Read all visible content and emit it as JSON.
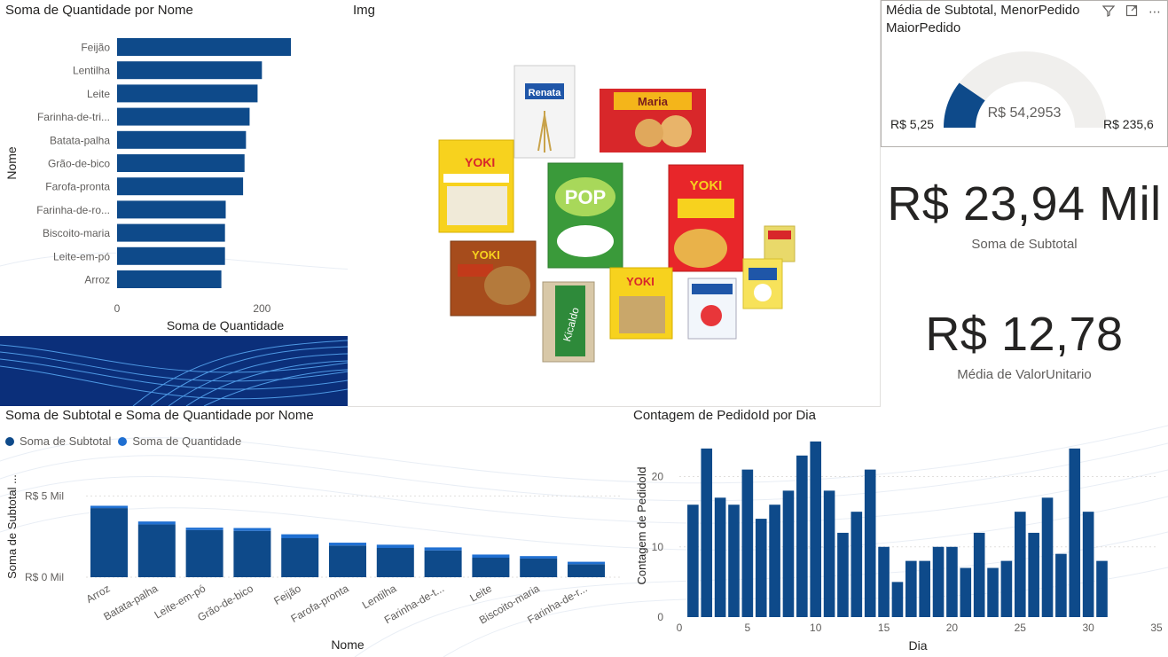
{
  "theme": {
    "bar_color": "#0e4a8a",
    "bar_light": "#1f6fd1",
    "dark_banner": "#0b2f7a"
  },
  "bar_chart_title": "Soma de Quantidade por Nome",
  "image_panel_title": "Img",
  "gauge": {
    "title_line1": "Média de Subtotal, MenorPedido",
    "title_line2": "MaiorPedido",
    "min_label": "R$ 5,25",
    "max_label": "R$ 235,6",
    "target_label": "R$ 54,2953",
    "fill_fraction": 0.2,
    "icons": [
      "filter-icon",
      "expand-icon",
      "more-icon"
    ]
  },
  "kpi1": {
    "value": "R$ 23,94 Mil",
    "label": "Soma de Subtotal"
  },
  "kpi2": {
    "value": "R$ 12,78",
    "label": "Média de ValorUnitario"
  },
  "stack_chart_title": "Soma de Subtotal e Soma de Quantidade por Nome",
  "stack_legend": [
    "Soma de Subtotal",
    "Soma de Quantidade"
  ],
  "day_chart_title": "Contagem de PedidoId por Dia",
  "products": [
    "Renata",
    "Maria",
    "Yoki Farinha de Rosca",
    "Pop Arroz Branco",
    "Yoki Batata Palha Tradicional",
    "Yoki Farofa Tradicional",
    "Kicaldo",
    "Yoki Grão de Bico",
    "Piracanjuba",
    "Ninho"
  ],
  "chart_data": [
    {
      "type": "bar",
      "orientation": "horizontal",
      "title": "Soma de Quantidade por Nome",
      "xlabel": "Soma de Quantidade",
      "ylabel": "Nome",
      "categories": [
        "Feijão",
        "Lentilha",
        "Leite",
        "Farinha-de-tri...",
        "Batata-palha",
        "Grão-de-bico",
        "Farofa-pronta",
        "Farinha-de-ro...",
        "Biscoito-maria",
        "Leite-em-pó",
        "Arroz"
      ],
      "values": [
        240,
        200,
        194,
        183,
        178,
        176,
        174,
        150,
        149,
        149,
        144
      ],
      "xticks": [
        "0",
        "200"
      ],
      "xlim": [
        0,
        300
      ]
    },
    {
      "type": "bar",
      "stacked": true,
      "title": "Soma de Subtotal e Soma de Quantidade por Nome",
      "xlabel": "Nome",
      "ylabel": "Soma de Subtotal ...",
      "categories": [
        "Arroz",
        "Batata-palha",
        "Leite-em-pó",
        "Grão-de-bico",
        "Feijão",
        "Farofa-pronta",
        "Lentilha",
        "Farinha-de-t...",
        "Leite",
        "Biscoito-maria",
        "Farinha-de-r..."
      ],
      "series": [
        {
          "name": "Soma de Subtotal",
          "values": [
            4250,
            3250,
            2900,
            2850,
            2400,
            1950,
            1800,
            1650,
            1200,
            1150,
            800
          ]
        },
        {
          "name": "Soma de Quantidade",
          "values": [
            144,
            178,
            149,
            176,
            240,
            174,
            200,
            183,
            194,
            149,
            150
          ]
        }
      ],
      "yticks": [
        "R$ 0 Mil",
        "R$ 5 Mil"
      ],
      "ylim": [
        0,
        6000
      ]
    },
    {
      "type": "bar",
      "title": "Contagem de PedidoId por Dia",
      "xlabel": "Dia",
      "ylabel": "Contagem de PedidoId",
      "x": [
        1,
        2,
        3,
        4,
        5,
        6,
        7,
        8,
        9,
        10,
        11,
        12,
        13,
        14,
        15,
        16,
        17,
        18,
        19,
        20,
        21,
        22,
        23,
        24,
        25,
        26,
        27,
        28,
        29,
        30,
        31
      ],
      "values": [
        16,
        24,
        17,
        16,
        21,
        14,
        16,
        18,
        23,
        25,
        18,
        12,
        15,
        21,
        10,
        5,
        8,
        8,
        10,
        10,
        7,
        12,
        7,
        8,
        15,
        12,
        17,
        9,
        24,
        15,
        8
      ],
      "xticks": [
        "0",
        "5",
        "10",
        "15",
        "20",
        "25",
        "30",
        "35"
      ],
      "yticks": [
        "0",
        "10",
        "20"
      ],
      "xlim": [
        0,
        35
      ],
      "ylim": [
        0,
        26
      ]
    }
  ]
}
